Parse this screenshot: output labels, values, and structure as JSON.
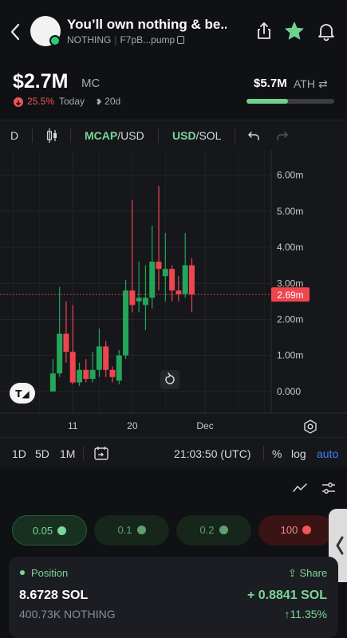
{
  "header": {
    "title": "You’ll own nothing & be...",
    "ticker": "NOTHING",
    "address": "F7pB...pump"
  },
  "stats": {
    "market_cap": "$2.7M",
    "market_cap_label": "MC",
    "change": "25.5%",
    "change_period": "Today",
    "age": "20d",
    "ath": "$5.7M",
    "ath_label": "ATH",
    "ath_progress_fraction": 0.47
  },
  "toolbar": {
    "interval": "D",
    "mcap_prefix": "MCAP",
    "mcap_suffix": "/USD",
    "usd_prefix": "USD",
    "usd_suffix": "/SOL"
  },
  "chart_data": {
    "type": "candlestick",
    "y_tick_labels": [
      "6.00m",
      "5.00m",
      "4.00m",
      "3.00m",
      "2.00m",
      "1.00m",
      "0.000"
    ],
    "ylim": [
      -0.6,
      6.7
    ],
    "x_tick_labels": [
      {
        "label": "11",
        "x": 11
      },
      {
        "label": "20",
        "x": 20
      },
      {
        "label": "Dec",
        "x": 31
      }
    ],
    "x_range": [
      0,
      41
    ],
    "current_value": 2.69,
    "current_label": "2.69m",
    "candles": [
      {
        "x": 8,
        "o": 0.0,
        "c": 0.5,
        "h": 0.9,
        "l": 0.0
      },
      {
        "x": 9,
        "o": 0.5,
        "c": 1.6,
        "h": 2.9,
        "l": 0.4
      },
      {
        "x": 10,
        "o": 1.6,
        "c": 1.1,
        "h": 2.5,
        "l": 0.8
      },
      {
        "x": 11,
        "o": 1.1,
        "c": 0.25,
        "h": 2.4,
        "l": 0.2
      },
      {
        "x": 12,
        "o": 0.25,
        "c": 0.6,
        "h": 0.8,
        "l": 0.15
      },
      {
        "x": 13,
        "o": 0.6,
        "c": 0.35,
        "h": 0.9,
        "l": 0.25
      },
      {
        "x": 14,
        "o": 0.35,
        "c": 0.6,
        "h": 1.1,
        "l": 0.25
      },
      {
        "x": 15,
        "o": 0.6,
        "c": 1.25,
        "h": 1.75,
        "l": 0.4
      },
      {
        "x": 16,
        "o": 1.25,
        "c": 0.6,
        "h": 1.4,
        "l": 0.4
      },
      {
        "x": 17,
        "o": 0.6,
        "c": 0.4,
        "h": 0.7,
        "l": 0.25
      },
      {
        "x": 18,
        "o": 0.3,
        "c": 1.0,
        "h": 1.15,
        "l": 0.2
      },
      {
        "x": 19,
        "o": 1.0,
        "c": 2.8,
        "h": 3.1,
        "l": 0.9
      },
      {
        "x": 20,
        "o": 2.8,
        "c": 2.4,
        "h": 5.3,
        "l": 2.2
      },
      {
        "x": 21,
        "o": 2.5,
        "c": 2.6,
        "h": 3.6,
        "l": 2.2
      },
      {
        "x": 22,
        "o": 2.4,
        "c": 2.6,
        "h": 3.5,
        "l": 1.7
      },
      {
        "x": 23,
        "o": 2.6,
        "c": 3.6,
        "h": 4.6,
        "l": 2.3
      },
      {
        "x": 24,
        "o": 3.6,
        "c": 3.4,
        "h": 5.7,
        "l": 2.8
      },
      {
        "x": 25,
        "o": 3.2,
        "c": 3.4,
        "h": 4.4,
        "l": 2.5
      },
      {
        "x": 26,
        "o": 3.4,
        "c": 2.8,
        "h": 3.5,
        "l": 2.5
      },
      {
        "x": 27,
        "o": 2.8,
        "c": 2.7,
        "h": 3.2,
        "l": 2.5
      },
      {
        "x": 28,
        "o": 2.7,
        "c": 3.5,
        "h": 4.4,
        "l": 2.6
      },
      {
        "x": 29,
        "o": 3.5,
        "c": 2.69,
        "h": 3.7,
        "l": 2.2
      }
    ]
  },
  "timeframes": {
    "d1": "1D",
    "d5": "5D",
    "m1": "1M",
    "time": "21:03:50 (UTC)",
    "percent": "%",
    "log": "log",
    "auto": "auto"
  },
  "presets": [
    {
      "label": "0.05"
    },
    {
      "label": "0.1"
    },
    {
      "label": "0.2"
    },
    {
      "label": "100"
    }
  ],
  "position": {
    "title": "Position",
    "share": "Share",
    "amount": "8.6728 SOL",
    "tokens": "400.73K NOTHING",
    "pnl": "+ 0.8841 SOL",
    "pnl_pct": "11.35%"
  },
  "colors": {
    "up": "#23a55a",
    "down": "#f0444f",
    "accent": "#7ad797",
    "link": "#3b82f6"
  }
}
